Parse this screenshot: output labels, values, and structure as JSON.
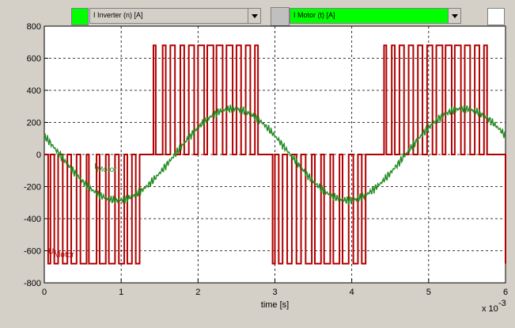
{
  "toolbar": {
    "trace1": {
      "color": "#00ff00",
      "label": "I Inverter (n) [A]"
    },
    "trace2": {
      "color": "#00ff00",
      "label": "I Motor (t) [A]"
    }
  },
  "chart_data": {
    "type": "line",
    "xlabel": "time [s]",
    "x_multiplier": "x 10",
    "x_exponent": "-3",
    "xlim": [
      0,
      6
    ],
    "ylim": [
      -800,
      800
    ],
    "x_ticks": [
      "0",
      "1",
      "2",
      "3",
      "4",
      "5",
      "6"
    ],
    "y_ticks": [
      "800",
      "600",
      "400",
      "200",
      "0",
      "-200",
      "-400",
      "-600",
      "-800"
    ],
    "grid": true,
    "annotations": [
      {
        "text": "I",
        "sub": "Motor",
        "color": "#228b22",
        "at": [
          0.65,
          -90
        ]
      },
      {
        "text": "U",
        "sub": "Motor",
        "color": "#b00000",
        "at": [
          0.05,
          -620
        ]
      }
    ],
    "series": [
      {
        "color": "#b00000",
        "pulses_negative": [
          [
            0.05,
            0.08
          ],
          [
            0.13,
            0.18
          ],
          [
            0.24,
            0.3
          ],
          [
            0.35,
            0.42
          ],
          [
            0.47,
            0.55
          ],
          [
            0.58,
            0.68
          ],
          [
            0.72,
            0.8
          ],
          [
            0.84,
            0.92
          ],
          [
            0.97,
            1.04
          ],
          [
            1.08,
            1.14
          ],
          [
            1.19,
            1.24
          ],
          [
            2.97,
            3.0
          ],
          [
            3.05,
            3.1
          ],
          [
            3.16,
            3.22
          ],
          [
            3.28,
            3.34
          ],
          [
            3.4,
            3.48
          ],
          [
            3.52,
            3.6
          ],
          [
            3.64,
            3.72
          ],
          [
            3.76,
            3.84
          ],
          [
            3.88,
            3.96
          ],
          [
            4.02,
            4.08
          ],
          [
            4.13,
            4.18
          ],
          [
            6.0,
            6.0
          ]
        ],
        "pulses_positive": [
          [
            1.42,
            1.45
          ],
          [
            1.54,
            1.58
          ],
          [
            1.64,
            1.7
          ],
          [
            1.77,
            1.82
          ],
          [
            1.88,
            1.95
          ],
          [
            2.0,
            2.08
          ],
          [
            2.12,
            2.2
          ],
          [
            2.24,
            2.32
          ],
          [
            2.37,
            2.45
          ],
          [
            2.5,
            2.56
          ],
          [
            2.62,
            2.68
          ],
          [
            2.74,
            2.78
          ],
          [
            4.42,
            4.45
          ],
          [
            4.52,
            4.56
          ],
          [
            4.62,
            4.68
          ],
          [
            4.74,
            4.8
          ],
          [
            4.86,
            4.92
          ],
          [
            4.98,
            5.05
          ],
          [
            5.1,
            5.18
          ],
          [
            5.22,
            5.3
          ],
          [
            5.34,
            5.42
          ],
          [
            5.47,
            5.54
          ],
          [
            5.6,
            5.66
          ],
          [
            5.72,
            5.76
          ]
        ],
        "pulse_level": 680
      },
      {
        "color": "#228b22",
        "amplitude": 285,
        "period": 3.0,
        "phase_zero_cross": 0.2,
        "ripple": 28
      }
    ]
  }
}
